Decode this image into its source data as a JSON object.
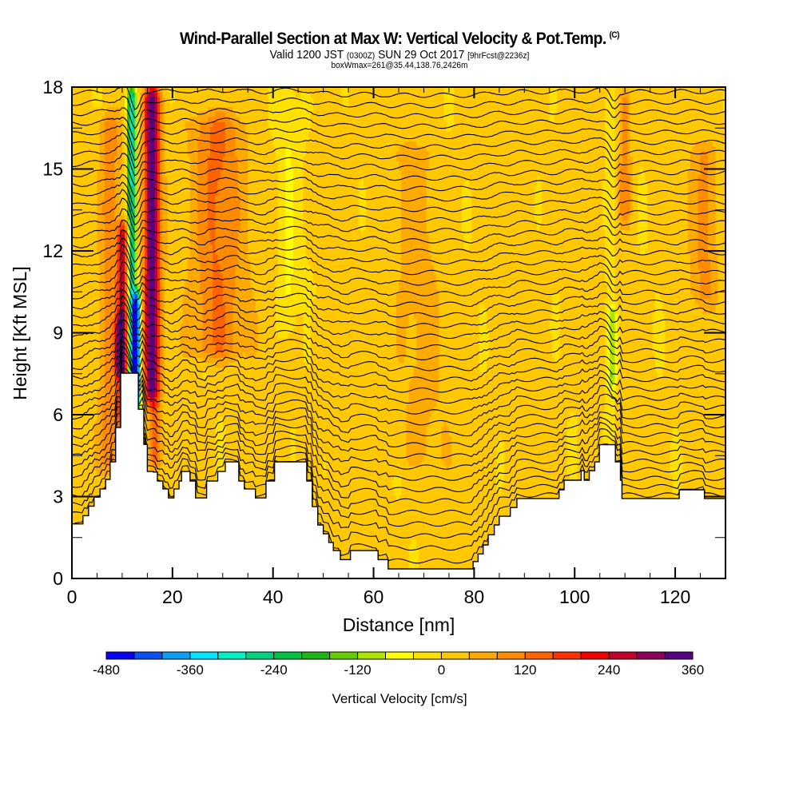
{
  "header": {
    "title": "Wind-Parallel Section at Max W: Vertical Velocity & Pot.Temp.",
    "copyright_mark": "(C)",
    "valid_prefix": "Valid 1200 JST",
    "valid_utc": "(0300Z)",
    "valid_date": "SUN 29 Oct 2017",
    "forecast_info": "[9hrFcst@2236z]",
    "box_info": "boxWmax=261@35.44,138.76,2426m"
  },
  "chart_data": {
    "type": "heatmap",
    "subtype": "filled-contour cross-section with isentropes",
    "xlabel": "Distance [nm]",
    "ylabel": "Height [Kft MSL]",
    "xlim": [
      0,
      130
    ],
    "ylim": [
      0,
      18
    ],
    "x_ticks": [
      0,
      20,
      40,
      60,
      80,
      100,
      120
    ],
    "x_tick_labels": [
      "0",
      "20",
      "40",
      "60",
      "80",
      "100",
      "120"
    ],
    "x_minor_step": 5,
    "y_ticks": [
      0,
      3,
      6,
      9,
      12,
      15,
      18
    ],
    "y_tick_labels": [
      "0",
      "3",
      "6",
      "9",
      "12",
      "15",
      "18"
    ],
    "y_minor_step": 1.5,
    "colorbar": {
      "title": "Vertical Velocity [cm/s]",
      "min": -480,
      "max": 360,
      "step": 40,
      "tick_values": [
        -480,
        -360,
        -240,
        -120,
        0,
        120,
        240,
        360
      ],
      "tick_labels": [
        "-480",
        "-360",
        "-240",
        "-120",
        "0",
        "120",
        "240",
        "360"
      ],
      "colors": [
        "#0a00f5",
        "#0a50f5",
        "#0a9ff5",
        "#00e6ff",
        "#00f0c8",
        "#00d282",
        "#00c346",
        "#1eb414",
        "#64cd00",
        "#afe600",
        "#ffff00",
        "#ffe100",
        "#ffc800",
        "#ffaa00",
        "#ff8c00",
        "#ff6400",
        "#ff3200",
        "#f50000",
        "#c3002d",
        "#8c005a",
        "#5a0082"
      ]
    },
    "terrain_profile_nm_kft": [
      [
        0,
        2.0
      ],
      [
        2.2,
        2.3
      ],
      [
        3.3,
        2.65
      ],
      [
        4.4,
        2.98
      ],
      [
        5.6,
        3.28
      ],
      [
        6.7,
        3.63
      ],
      [
        7.6,
        4.27
      ],
      [
        8.7,
        5.53
      ],
      [
        9.7,
        7.52
      ],
      [
        12.9,
        7.52
      ],
      [
        13.2,
        6.2
      ],
      [
        14.3,
        4.91
      ],
      [
        15.0,
        3.92
      ],
      [
        16.2,
        3.9
      ],
      [
        17.0,
        3.57
      ],
      [
        18.1,
        3.28
      ],
      [
        19.2,
        2.95
      ],
      [
        20.3,
        3.28
      ],
      [
        21.3,
        3.57
      ],
      [
        21.8,
        3.92
      ],
      [
        23.5,
        3.57
      ],
      [
        24.6,
        2.95
      ],
      [
        26.8,
        3.57
      ],
      [
        29.0,
        3.92
      ],
      [
        30.5,
        4.27
      ],
      [
        33.2,
        3.57
      ],
      [
        34.3,
        3.28
      ],
      [
        36.5,
        2.95
      ],
      [
        38.6,
        3.57
      ],
      [
        40.3,
        4.27
      ],
      [
        46.7,
        3.57
      ],
      [
        47.8,
        2.63
      ],
      [
        48.9,
        1.96
      ],
      [
        50.0,
        1.64
      ],
      [
        51.1,
        1.32
      ],
      [
        52.0,
        1.02
      ],
      [
        53.4,
        0.69
      ],
      [
        55.4,
        1.02
      ],
      [
        60.9,
        0.69
      ],
      [
        62.9,
        0.35
      ],
      [
        79.5,
        0.35
      ],
      [
        79.8,
        0.62
      ],
      [
        80.8,
        0.9
      ],
      [
        81.8,
        1.23
      ],
      [
        82.8,
        1.6
      ],
      [
        84.0,
        1.96
      ],
      [
        85.0,
        2.28
      ],
      [
        87.2,
        2.6
      ],
      [
        88.5,
        2.93
      ],
      [
        92.6,
        2.93
      ],
      [
        96.9,
        3.25
      ],
      [
        97.9,
        3.6
      ],
      [
        101.3,
        3.95
      ],
      [
        101.9,
        3.6
      ],
      [
        102.9,
        3.95
      ],
      [
        104.0,
        4.27
      ],
      [
        104.9,
        4.9
      ],
      [
        108.1,
        4.27
      ],
      [
        109.1,
        3.6
      ],
      [
        109.4,
        2.93
      ],
      [
        120.5,
        2.93
      ],
      [
        120.8,
        3.25
      ],
      [
        125.8,
        2.93
      ],
      [
        130,
        2.93
      ]
    ],
    "velocity_features": [
      {
        "x_nm": 11.9,
        "width_nm": 0.9,
        "value": -320,
        "z_from": 6.2,
        "z_to": 18
      },
      {
        "x_nm": 12.9,
        "width_nm": 0.7,
        "value": -450,
        "z_from": 6.2,
        "z_to": 10.5
      },
      {
        "x_nm": 10.2,
        "width_nm": 1.1,
        "value": 250,
        "z_from": 5.5,
        "z_to": 13
      },
      {
        "x_nm": 9.6,
        "width_nm": 0.8,
        "value": 330,
        "z_from": 7.5,
        "z_to": 9.5
      },
      {
        "x_nm": 15.6,
        "width_nm": 1.3,
        "value": 210,
        "z_from": 6.5,
        "z_to": 18
      },
      {
        "x_nm": 16.5,
        "width_nm": 1.5,
        "value": 150,
        "z_from": 4,
        "z_to": 18
      },
      {
        "x_nm": 28.5,
        "width_nm": 5.0,
        "value": 110,
        "z_from": 8,
        "z_to": 17
      },
      {
        "x_nm": 7.5,
        "width_nm": 2.0,
        "value": 100,
        "z_from": 4,
        "z_to": 17
      },
      {
        "x_nm": 43.0,
        "width_nm": 1.5,
        "value": -40,
        "z_from": 9,
        "z_to": 18
      },
      {
        "x_nm": 46.0,
        "width_nm": 4.0,
        "value": -20,
        "z_from": 10,
        "z_to": 18
      },
      {
        "x_nm": 107.5,
        "width_nm": 0.9,
        "value": -120,
        "z_from": 7,
        "z_to": 10
      },
      {
        "x_nm": 107.0,
        "width_nm": 1.3,
        "value": -40,
        "z_from": 5,
        "z_to": 18
      },
      {
        "x_nm": 110.0,
        "width_nm": 1.2,
        "value": 100,
        "z_from": 13,
        "z_to": 18
      },
      {
        "x_nm": 126.0,
        "width_nm": 2.5,
        "value": 70,
        "z_from": 10,
        "z_to": 16
      },
      {
        "x_nm": 68.0,
        "width_nm": 6.0,
        "value": 30,
        "z_from": 4,
        "z_to": 16
      },
      {
        "x_nm": 18.0,
        "width_nm": 3.0,
        "value": -30,
        "z_from": 3.3,
        "z_to": 7
      }
    ],
    "isentropes": {
      "count": 44,
      "label": "Pot.Temp.",
      "base_height_kft": 0.6,
      "top_height_kft": 17.7
    }
  }
}
